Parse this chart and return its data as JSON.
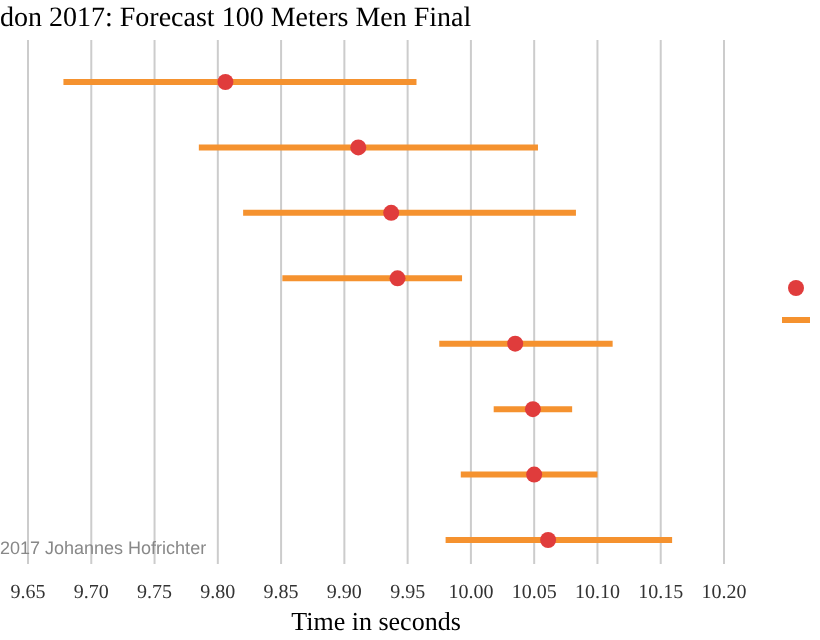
{
  "chart_data": {
    "type": "scatter",
    "orientation": "horizontal",
    "title": "don 2017: Forecast 100 Meters Men Final",
    "xlabel": "Time in seconds",
    "annotations": [
      "2017 Johannes Hofrichter"
    ],
    "categories": [
      null,
      null,
      null,
      null,
      null,
      null,
      null,
      null
    ],
    "series": [
      {
        "color": "#e03c3c",
        "values": [
          9.806,
          9.911,
          9.937,
          9.942,
          10.035,
          10.049,
          10.05,
          10.061
        ],
        "errors": [
          [
            9.678,
            9.957
          ],
          [
            9.785,
            10.053
          ],
          [
            9.82,
            10.083
          ],
          [
            9.851,
            9.993
          ],
          [
            9.975,
            10.112
          ],
          [
            10.018,
            10.08
          ],
          [
            9.992,
            10.1
          ],
          [
            9.98,
            10.159
          ]
        ]
      }
    ],
    "xlim": [
      9.65,
      10.2
    ],
    "xticks": [
      {
        "value": 9.65,
        "label": "9.65"
      },
      {
        "value": 9.7,
        "label": "9.70"
      },
      9.75,
      {
        "value": 9.8,
        "label": "9.80"
      },
      9.85,
      {
        "value": 9.9,
        "label": "9.90"
      },
      9.95,
      {
        "value": 10,
        "label": "10.00"
      },
      10.05,
      {
        "value": 10.1,
        "label": "10.10"
      },
      10.15,
      {
        "value": 10.2,
        "label": "10.20"
      }
    ],
    "grid": "x",
    "tick_labels": "x",
    "marker": "circle"
  }
}
